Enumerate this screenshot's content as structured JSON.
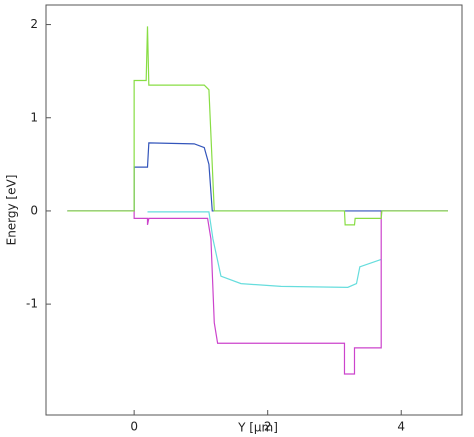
{
  "chart_data": {
    "type": "line",
    "x_label": "Y [µm]",
    "y_label": "Energy [eV]",
    "xlim": [
      -1.32,
      4.91
    ],
    "xticks": [
      0,
      2,
      4
    ],
    "ylim": [
      -2.19,
      2.21
    ],
    "yticks": [
      -1,
      0,
      1,
      2
    ],
    "grid": false,
    "series": [
      {
        "color": "#66dddd",
        "x": [
          0.2,
          1.12,
          1.18,
          1.3,
          1.6,
          2.2,
          3.2,
          3.33,
          3.38,
          3.7
        ],
        "values": [
          -0.01,
          -0.01,
          -0.3,
          -0.7,
          -0.78,
          -0.81,
          -0.82,
          -0.78,
          -0.6,
          -0.52
        ]
      },
      {
        "color": "#cc44cc",
        "x": [
          -1,
          0,
          0,
          0.2,
          0.2,
          0.22,
          1.1,
          1.15,
          1.2,
          1.25,
          3.15,
          3.15,
          3.3,
          3.3,
          3.7,
          3.7,
          4.7
        ],
        "values": [
          0,
          0,
          -0.08,
          -0.08,
          -0.15,
          -0.08,
          -0.08,
          -0.3,
          -1.2,
          -1.42,
          -1.42,
          -1.75,
          -1.75,
          -1.47,
          -1.47,
          0,
          0
        ]
      },
      {
        "color": "#3355bb",
        "x": [
          -1,
          0,
          0,
          0.2,
          0.22,
          0.9,
          1.05,
          1.12,
          1.17,
          4.7
        ],
        "values": [
          0,
          0,
          0.47,
          0.47,
          0.73,
          0.72,
          0.68,
          0.5,
          0,
          0
        ]
      },
      {
        "color": "#88dd44",
        "x": [
          -1,
          0,
          0,
          0.18,
          0.2,
          0.22,
          1.05,
          1.12,
          1.2,
          3.15,
          3.16,
          3.3,
          3.31,
          3.7,
          3.71,
          4.7
        ],
        "values": [
          0,
          0,
          1.4,
          1.4,
          1.98,
          1.35,
          1.35,
          1.3,
          0,
          0,
          -0.15,
          -0.15,
          -0.08,
          -0.08,
          0,
          0
        ]
      }
    ]
  }
}
